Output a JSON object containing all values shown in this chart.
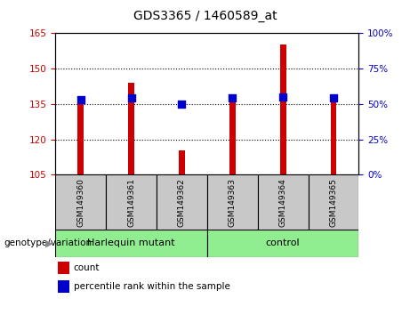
{
  "title": "GDS3365 / 1460589_at",
  "samples": [
    "GSM149360",
    "GSM149361",
    "GSM149362",
    "GSM149363",
    "GSM149364",
    "GSM149365"
  ],
  "bar_values": [
    135.5,
    144.0,
    115.5,
    135.5,
    160.0,
    138.0
  ],
  "percentile_values": [
    53,
    54,
    50,
    54,
    55,
    54
  ],
  "ylim_left": [
    105,
    165
  ],
  "yticks_left": [
    105,
    120,
    135,
    150,
    165
  ],
  "ylim_right": [
    0,
    100
  ],
  "yticks_right": [
    0,
    25,
    50,
    75,
    100
  ],
  "bar_color": "#cc0000",
  "dot_color": "#0000cc",
  "bar_bottom": 105,
  "harlequin_samples": 3,
  "control_samples": 3,
  "genotype_label": "genotype/variation",
  "legend_count_label": "count",
  "legend_percentile_label": "percentile rank within the sample",
  "tick_label_color_left": "#cc0000",
  "tick_label_color_right": "#0000cc",
  "sample_box_color": "#c8c8c8",
  "group_box_color": "#90ee90",
  "bar_width": 0.12,
  "dot_size": 28,
  "title_fontsize": 10,
  "tick_fontsize": 7.5,
  "sample_fontsize": 6.5,
  "group_fontsize": 8,
  "legend_fontsize": 7.5,
  "right_tick_suffix": "%"
}
